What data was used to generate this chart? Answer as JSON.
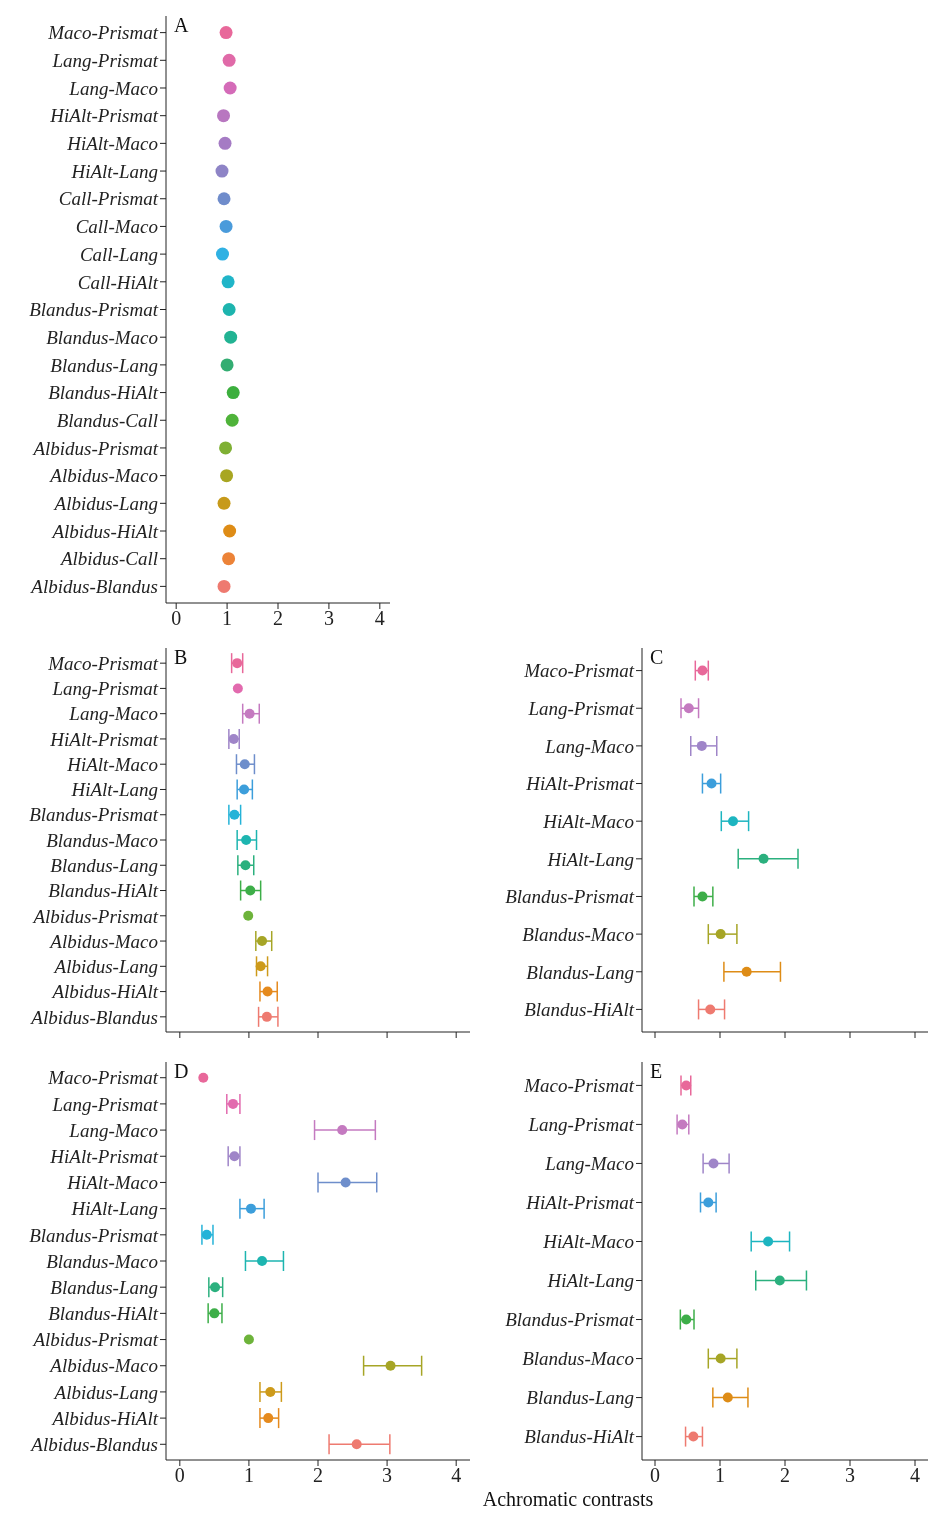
{
  "chart_data": [
    {
      "type": "scatter",
      "title": "A",
      "orientation": "horizontal",
      "marker": "circle",
      "xlim": [
        -0.2,
        4.2
      ],
      "xticks": [
        0,
        1,
        2,
        3,
        4
      ],
      "categories": [
        "Maco-Prismat",
        "Lang-Prismat",
        "Lang-Maco",
        "HiAlt-Prismat",
        "HiAlt-Maco",
        "HiAlt-Lang",
        "Call-Prismat",
        "Call-Maco",
        "Call-Lang",
        "Call-HiAlt",
        "Blandus-Prismat",
        "Blandus-Maco",
        "Blandus-Lang",
        "Blandus-HiAlt",
        "Blandus-Call",
        "Albidus-Prismat",
        "Albidus-Maco",
        "Albidus-Lang",
        "Albidus-HiAlt",
        "Albidus-Call",
        "Albidus-Blandus"
      ],
      "values": [
        0.98,
        1.04,
        1.06,
        0.93,
        0.96,
        0.9,
        0.94,
        0.98,
        0.91,
        1.02,
        1.04,
        1.07,
        1.0,
        1.12,
        1.1,
        0.97,
        0.99,
        0.94,
        1.05,
        1.03,
        0.94
      ],
      "colors": [
        "#e8689a",
        "#e06aa8",
        "#d46bb8",
        "#b877c0",
        "#a57bc4",
        "#8e84c6",
        "#6f8ccb",
        "#4a9bdb",
        "#2fb1e3",
        "#20b5c8",
        "#1db4ae",
        "#22b393",
        "#33ad72",
        "#3caf3e",
        "#4fb33a",
        "#7fb034",
        "#a8a622",
        "#c79a1a",
        "#de8c16",
        "#ec8338",
        "#ee7a70"
      ]
    },
    {
      "type": "scatter",
      "title": "B",
      "orientation": "horizontal",
      "marker": "circle",
      "xlim": [
        -0.2,
        4.2
      ],
      "xticks": [
        0,
        1,
        2,
        3,
        4
      ],
      "tick_labels": "y",
      "categories": [
        "Maco-Prismat",
        "Lang-Prismat",
        "Lang-Maco",
        "HiAlt-Prismat",
        "HiAlt-Maco",
        "HiAlt-Lang",
        "Blandus-Prismat",
        "Blandus-Maco",
        "Blandus-Lang",
        "Blandus-HiAlt",
        "Albidus-Prismat",
        "Albidus-Maco",
        "Albidus-Lang",
        "Albidus-HiAlt",
        "Albidus-Blandus"
      ],
      "values": [
        0.83,
        0.84,
        1.01,
        0.78,
        0.94,
        0.93,
        0.79,
        0.96,
        0.95,
        1.02,
        0.99,
        1.19,
        1.17,
        1.27,
        1.26
      ],
      "errors": [
        [
          0.75,
          0.91
        ],
        null,
        [
          0.91,
          1.15
        ],
        [
          0.71,
          0.86
        ],
        [
          0.82,
          1.08
        ],
        [
          0.83,
          1.05
        ],
        [
          0.71,
          0.88
        ],
        [
          0.83,
          1.11
        ],
        [
          0.84,
          1.07
        ],
        [
          0.88,
          1.17
        ],
        null,
        [
          1.1,
          1.33
        ],
        [
          1.11,
          1.27
        ],
        [
          1.16,
          1.41
        ],
        [
          1.14,
          1.42
        ]
      ],
      "colors": [
        "#e8689a",
        "#e26aae",
        "#c47ac0",
        "#9f85c8",
        "#6e8ecb",
        "#3c9edb",
        "#25b3d8",
        "#1db5b0",
        "#2bb07e",
        "#3dae48",
        "#6db33a",
        "#a6a526",
        "#cd9a1a",
        "#e58a1e",
        "#ee7a70"
      ]
    },
    {
      "type": "scatter",
      "title": "C",
      "orientation": "horizontal",
      "marker": "circle",
      "xlim": [
        -0.2,
        4.2
      ],
      "xticks": [
        0,
        1,
        2,
        3,
        4
      ],
      "tick_labels": "y",
      "categories": [
        "Maco-Prismat",
        "Lang-Prismat",
        "Lang-Maco",
        "HiAlt-Prismat",
        "HiAlt-Maco",
        "HiAlt-Lang",
        "Blandus-Prismat",
        "Blandus-Maco",
        "Blandus-Lang",
        "Blandus-HiAlt"
      ],
      "values": [
        0.73,
        0.52,
        0.72,
        0.87,
        1.2,
        1.67,
        0.73,
        1.01,
        1.41,
        0.85
      ],
      "errors": [
        [
          0.62,
          0.82
        ],
        [
          0.4,
          0.67
        ],
        [
          0.55,
          0.95
        ],
        [
          0.73,
          1.01
        ],
        [
          1.02,
          1.44
        ],
        [
          1.28,
          2.2
        ],
        [
          0.6,
          0.89
        ],
        [
          0.82,
          1.26
        ],
        [
          1.06,
          1.93
        ],
        [
          0.67,
          1.07
        ]
      ],
      "colors": [
        "#e8689a",
        "#c47ac0",
        "#9f85c8",
        "#3c9edb",
        "#1db5c0",
        "#2bb07e",
        "#3dae48",
        "#a6a526",
        "#de8c16",
        "#ee7a70"
      ]
    },
    {
      "type": "scatter",
      "title": "D",
      "orientation": "horizontal",
      "marker": "circle",
      "xlim": [
        -0.2,
        4.2
      ],
      "xticks": [
        0,
        1,
        2,
        3,
        4
      ],
      "categories": [
        "Maco-Prismat",
        "Lang-Prismat",
        "Lang-Maco",
        "HiAlt-Prismat",
        "HiAlt-Maco",
        "HiAlt-Lang",
        "Blandus-Prismat",
        "Blandus-Maco",
        "Blandus-Lang",
        "Blandus-HiAlt",
        "Albidus-Prismat",
        "Albidus-Maco",
        "Albidus-Lang",
        "Albidus-HiAlt",
        "Albidus-Blandus"
      ],
      "values": [
        0.34,
        0.77,
        2.35,
        0.79,
        2.4,
        1.03,
        0.39,
        1.19,
        0.51,
        0.5,
        1.0,
        3.05,
        1.31,
        1.28,
        2.56
      ],
      "errors": [
        null,
        [
          0.68,
          0.87
        ],
        [
          1.95,
          2.83
        ],
        [
          0.7,
          0.87
        ],
        [
          2.0,
          2.85
        ],
        [
          0.87,
          1.22
        ],
        [
          0.32,
          0.48
        ],
        [
          0.95,
          1.5
        ],
        [
          0.42,
          0.62
        ],
        [
          0.41,
          0.61
        ],
        null,
        [
          2.66,
          3.5
        ],
        [
          1.16,
          1.47
        ],
        [
          1.16,
          1.43
        ],
        [
          2.16,
          3.04
        ]
      ],
      "colors": [
        "#e8689a",
        "#e26aae",
        "#c47ac0",
        "#9f85c8",
        "#6e8ecb",
        "#3c9edb",
        "#25b3d8",
        "#1db5b0",
        "#2bb07e",
        "#3dae48",
        "#6db33a",
        "#a6a526",
        "#cd9a1a",
        "#e58a1e",
        "#ee7a70"
      ]
    },
    {
      "type": "scatter",
      "title": "E",
      "orientation": "horizontal",
      "marker": "circle",
      "xlim": [
        -0.2,
        4.2
      ],
      "xticks": [
        0,
        1,
        2,
        3,
        4
      ],
      "xlabel": "Achromatic contrasts",
      "categories": [
        "Maco-Prismat",
        "Lang-Prismat",
        "Lang-Maco",
        "HiAlt-Prismat",
        "HiAlt-Maco",
        "HiAlt-Lang",
        "Blandus-Prismat",
        "Blandus-Maco",
        "Blandus-Lang",
        "Blandus-HiAlt"
      ],
      "values": [
        0.48,
        0.42,
        0.9,
        0.82,
        1.74,
        1.92,
        0.48,
        1.01,
        1.12,
        0.59
      ],
      "errors": [
        [
          0.4,
          0.55
        ],
        [
          0.34,
          0.52
        ],
        [
          0.74,
          1.14
        ],
        [
          0.7,
          0.94
        ],
        [
          1.48,
          2.07
        ],
        [
          1.55,
          2.33
        ],
        [
          0.39,
          0.6
        ],
        [
          0.82,
          1.26
        ],
        [
          0.89,
          1.43
        ],
        [
          0.47,
          0.73
        ]
      ],
      "colors": [
        "#e8689a",
        "#c47ac0",
        "#9f85c8",
        "#3c9edb",
        "#1db5c0",
        "#2bb07e",
        "#3dae48",
        "#a6a526",
        "#de8c16",
        "#ee7a70"
      ]
    }
  ]
}
